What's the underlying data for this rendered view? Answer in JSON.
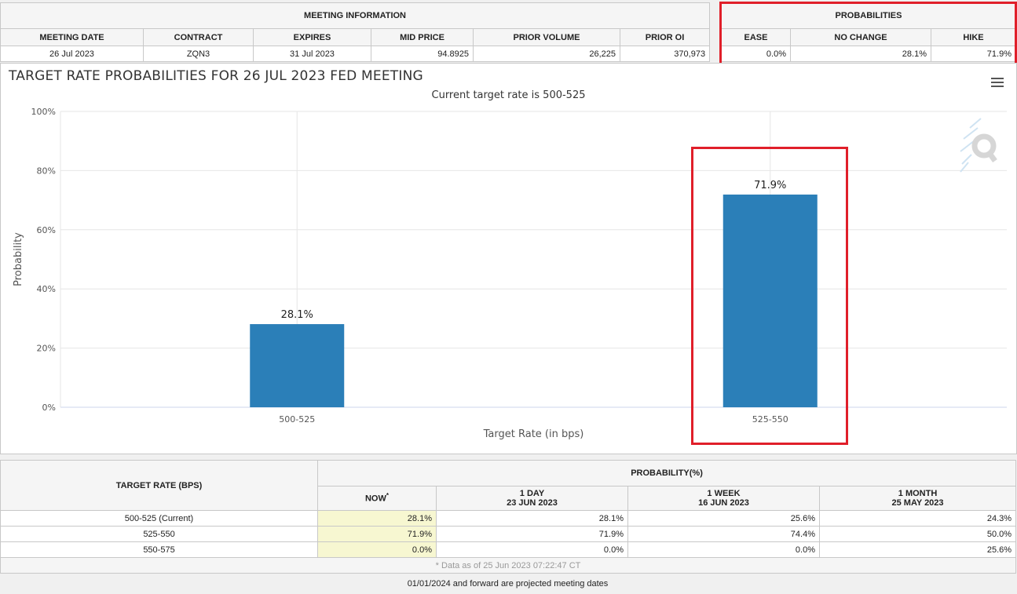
{
  "meeting_info": {
    "title": "MEETING INFORMATION",
    "headers": [
      "MEETING DATE",
      "CONTRACT",
      "EXPIRES",
      "MID PRICE",
      "PRIOR VOLUME",
      "PRIOR OI"
    ],
    "values": [
      "26 Jul 2023",
      "ZQN3",
      "31 Jul 2023",
      "94.8925",
      "26,225",
      "370,973"
    ]
  },
  "probabilities": {
    "title": "PROBABILITIES",
    "headers": [
      "EASE",
      "NO CHANGE",
      "HIKE"
    ],
    "values": [
      "0.0%",
      "28.1%",
      "71.9%"
    ]
  },
  "chart_data": {
    "type": "bar",
    "title": "TARGET RATE PROBABILITIES FOR 26 JUL 2023 FED MEETING",
    "subtitle": "Current target rate is 500-525",
    "xlabel": "Target Rate (in bps)",
    "ylabel": "Probability",
    "categories": [
      "500-525",
      "525-550"
    ],
    "values": [
      28.1,
      71.9
    ],
    "value_labels": [
      "28.1%",
      "71.9%"
    ],
    "ylim": [
      0,
      100
    ],
    "yticks": [
      "0%",
      "20%",
      "40%",
      "60%",
      "80%",
      "100%"
    ],
    "grid": true,
    "bar_color": "#2b7fb8"
  },
  "rates_table": {
    "target_header": "TARGET RATE (BPS)",
    "prob_header": "PROBABILITY(%)",
    "col_now": "NOW",
    "col_now_mark": "*",
    "col_1day": "1 DAY",
    "col_1day_date": "23 JUN 2023",
    "col_1week": "1 WEEK",
    "col_1week_date": "16 JUN 2023",
    "col_1month": "1 MONTH",
    "col_1month_date": "25 MAY 2023",
    "rows": [
      {
        "rate": "500-525 (Current)",
        "now": "28.1%",
        "day": "28.1%",
        "week": "25.6%",
        "month": "24.3%"
      },
      {
        "rate": "525-550",
        "now": "71.9%",
        "day": "71.9%",
        "week": "74.4%",
        "month": "50.0%"
      },
      {
        "rate": "550-575",
        "now": "0.0%",
        "day": "0.0%",
        "week": "0.0%",
        "month": "25.6%"
      }
    ],
    "footnote": "* Data as of 25 Jun 2023 07:22:47 CT"
  },
  "bottom_note": "01/01/2024 and forward are projected meeting dates",
  "colors": {
    "highlight_box": "#e01f2a",
    "now_column": "#f7f7d1"
  }
}
